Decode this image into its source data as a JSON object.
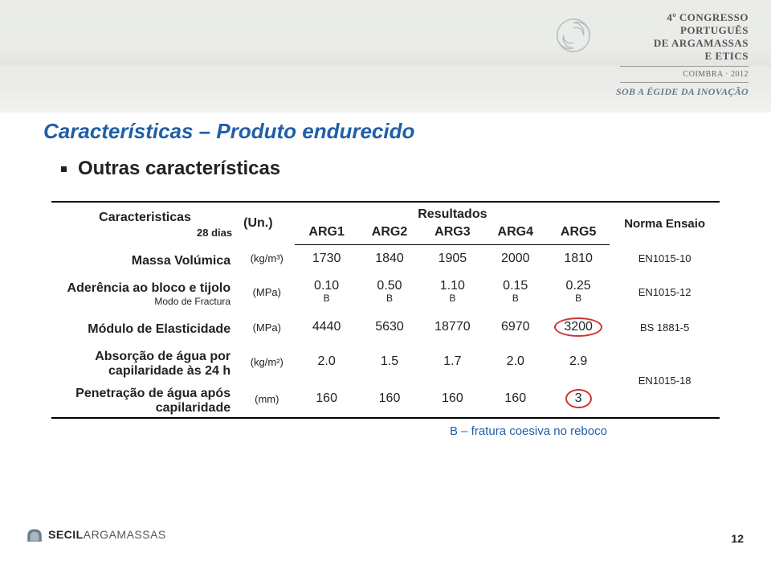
{
  "header": {
    "line1": "4º CONGRESSO",
    "line2": "PORTUGUÊS",
    "line3": "DE ARGAMASSAS",
    "line4": "E ETICS",
    "line5": "COIMBRA · 2012",
    "line6": "SOB A ÉGIDE DA INOVAÇÃO"
  },
  "title": "Características – Produto endurecido",
  "title_color": "#1f5fa8",
  "subtitle": "Outras características",
  "table": {
    "char_header": "Caracteristicas",
    "char_sub": "28 dias",
    "unit_header": "(Un.)",
    "results_header": "Resultados",
    "argcols": [
      "ARG1",
      "ARG2",
      "ARG3",
      "ARG4",
      "ARG5"
    ],
    "norm_header": "Norma Ensaio",
    "rows": [
      {
        "label": "Massa Volúmica",
        "unit_html": "(kg/m³)",
        "cells": [
          {
            "v": "1730"
          },
          {
            "v": "1840"
          },
          {
            "v": "1905"
          },
          {
            "v": "2000"
          },
          {
            "v": "1810"
          }
        ],
        "norm": "EN1015-10"
      },
      {
        "label": "Aderência ao bloco e tijolo",
        "sublabel": "Modo de Fractura",
        "unit_html": "(MPa)",
        "cells": [
          {
            "v": "0.10",
            "sub": "B"
          },
          {
            "v": "0.50",
            "sub": "B"
          },
          {
            "v": "1.10",
            "sub": "B"
          },
          {
            "v": "0.15",
            "sub": "B"
          },
          {
            "v": "0.25",
            "sub": "B"
          }
        ],
        "norm": "EN1015-12"
      },
      {
        "label": "Módulo de Elasticidade",
        "unit_html": "(MPa)",
        "cells": [
          {
            "v": "4440"
          },
          {
            "v": "5630"
          },
          {
            "v": "18770"
          },
          {
            "v": "6970"
          },
          {
            "v": "3200",
            "circle": true
          }
        ],
        "norm": "BS 1881-5"
      },
      {
        "label": "Absorção de água por capilaridade às 24 h",
        "unit_html": "(kg/m²)",
        "cells": [
          {
            "v": "2.0"
          },
          {
            "v": "1.5"
          },
          {
            "v": "1.7"
          },
          {
            "v": "2.0"
          },
          {
            "v": "2.9"
          }
        ],
        "norm": "EN1015-18",
        "norm_rowspan": 2
      },
      {
        "label": "Penetração de água após capilaridade",
        "unit_html": "(mm)",
        "cells": [
          {
            "v": "160"
          },
          {
            "v": "160"
          },
          {
            "v": "160"
          },
          {
            "v": "160"
          },
          {
            "v": "3",
            "circle": true
          }
        ]
      }
    ]
  },
  "note_text": "B – fratura coesiva no reboco",
  "note_color": "#1f5fa8",
  "footer": {
    "brand1": "SECIL",
    "brand2": "ARGAMASSAS"
  },
  "page_number": "12",
  "circle_color": "#c33"
}
